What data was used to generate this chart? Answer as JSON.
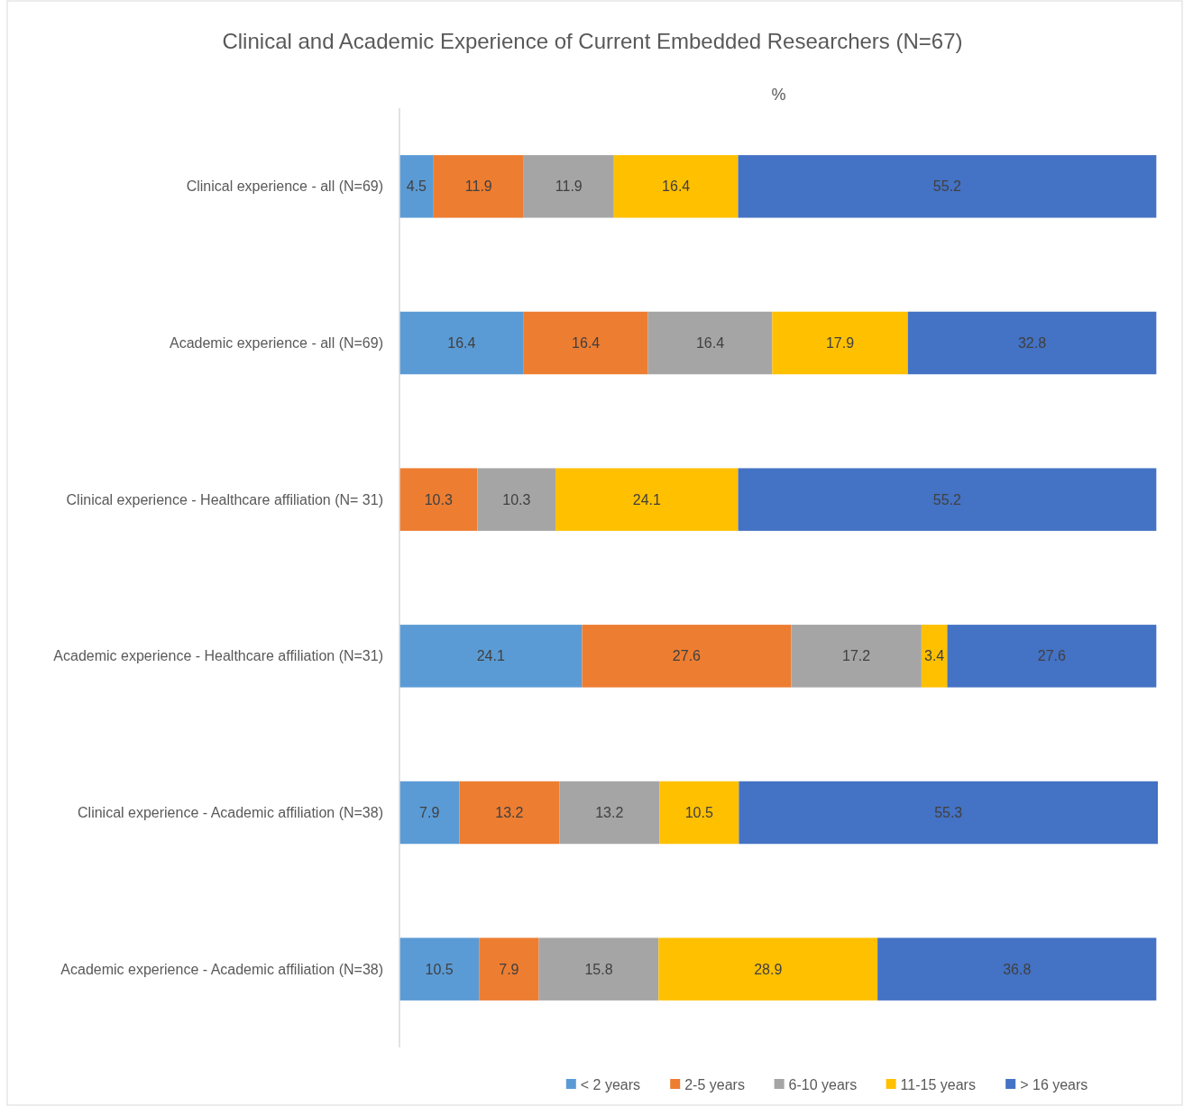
{
  "chart_data": {
    "type": "bar",
    "orientation": "horizontal",
    "stacked": true,
    "title": "Clinical and Academic Experience of Current Embedded Researchers (N=67)",
    "xlabel": "%",
    "categories": [
      "Clinical experience - all (N=69)",
      "Academic experience - all (N=69)",
      "Clinical experience - Healthcare affiliation (N= 31)",
      "Academic experience - Healthcare affiliation (N=31)",
      "Clinical experience - Academic affiliation (N=38)",
      "Academic experience - Academic affiliation (N=38)"
    ],
    "series": [
      {
        "name": "< 2 years",
        "color": "#5b9bd5",
        "values": [
          4.5,
          16.4,
          null,
          24.1,
          7.9,
          10.5
        ]
      },
      {
        "name": "2-5 years",
        "color": "#ed7d31",
        "values": [
          11.9,
          16.4,
          10.3,
          27.6,
          13.2,
          7.9
        ]
      },
      {
        "name": "6-10 years",
        "color": "#a5a5a5",
        "values": [
          11.9,
          16.4,
          10.3,
          17.2,
          13.2,
          15.8
        ]
      },
      {
        "name": "11-15 years",
        "color": "#ffc000",
        "values": [
          16.4,
          17.9,
          24.1,
          3.4,
          10.5,
          28.9
        ]
      },
      {
        "name": "> 16 years",
        "color": "#4472c4",
        "values": [
          55.2,
          32.8,
          55.2,
          27.6,
          55.3,
          36.8
        ]
      }
    ],
    "data_labels": true,
    "legend": "bottom",
    "tick_labels": "y",
    "grid": false
  }
}
